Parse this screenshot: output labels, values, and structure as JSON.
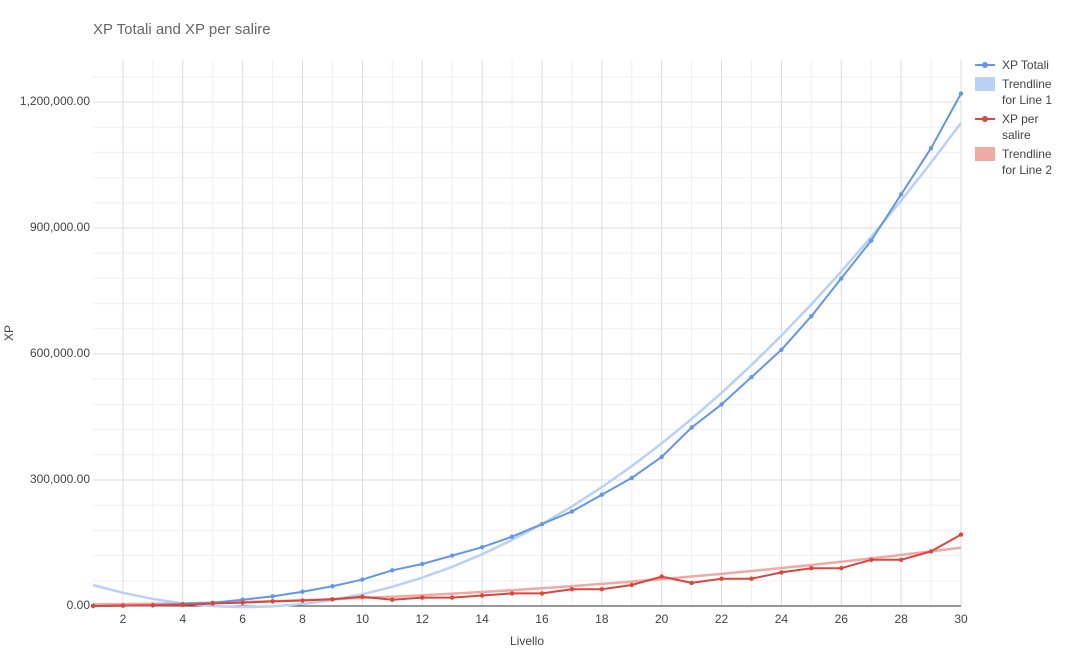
{
  "chart_data": {
    "type": "line",
    "title": "XP Totali and XP per salire",
    "x_label": "Livello",
    "y_label": "XP",
    "x": [
      1,
      2,
      3,
      4,
      5,
      6,
      7,
      8,
      9,
      10,
      11,
      12,
      13,
      14,
      15,
      16,
      17,
      18,
      19,
      20,
      21,
      22,
      23,
      24,
      25,
      26,
      27,
      28,
      29,
      30
    ],
    "series": [
      {
        "name": "XP Totali",
        "color": "#6497e8",
        "trendline": false,
        "values": [
          0,
          1000,
          2500,
          5000,
          8000,
          15000,
          23000,
          34000,
          47000,
          63000,
          85000,
          100000,
          120000,
          140000,
          165000,
          195000,
          225000,
          265000,
          305000,
          355000,
          425000,
          480000,
          545000,
          610000,
          690000,
          780000,
          870000,
          980000,
          1090000,
          1220000
        ]
      },
      {
        "name": "Trendline for Line 1",
        "color": "#b9d1f6",
        "trendline": true,
        "values": [
          50000,
          31403,
          16844,
          6321,
          -160,
          -2605,
          -1012,
          4619,
          14288,
          27995,
          45740,
          67523,
          93344,
          123203,
          157100,
          195035,
          237008,
          283019,
          333068,
          387155,
          445280,
          507443,
          573644,
          643883,
          718160,
          796475,
          878828,
          965219,
          1055648,
          1150115
        ]
      },
      {
        "name": "XP per salire",
        "color": "#d9463b",
        "trendline": false,
        "values": [
          0,
          1000,
          1500,
          2500,
          6000,
          8000,
          11000,
          13000,
          16000,
          22000,
          15000,
          20000,
          20000,
          25000,
          30000,
          30000,
          40000,
          40000,
          50000,
          70000,
          55000,
          65000,
          65000,
          80000,
          90000,
          90000,
          110000,
          110000,
          130000,
          170000
        ]
      },
      {
        "name": "Trendline for Line 2",
        "color": "#efaaa4",
        "trendline": true,
        "values": [
          4150,
          4600,
          5350,
          6400,
          7750,
          9400,
          11350,
          13600,
          16150,
          19000,
          22150,
          25600,
          29350,
          33400,
          37750,
          42400,
          47350,
          52600,
          58150,
          64000,
          70150,
          76600,
          83350,
          90400,
          97750,
          105400,
          113350,
          121600,
          130150,
          139000
        ]
      }
    ],
    "xlim": [
      1,
      30
    ],
    "xticks": [
      2,
      4,
      6,
      8,
      10,
      12,
      14,
      16,
      18,
      20,
      22,
      24,
      26,
      28,
      30
    ],
    "x_minor_ticks": [
      3,
      5,
      7,
      9,
      11,
      13,
      15,
      17,
      19,
      21,
      23,
      25,
      27,
      29
    ],
    "ylim": [
      0,
      1300000
    ],
    "yticks": [
      {
        "value": 0,
        "label": "0.00"
      },
      {
        "value": 300000,
        "label": "300,000.00"
      },
      {
        "value": 600000,
        "label": "600,000.00"
      },
      {
        "value": 900000,
        "label": "900,000.00"
      },
      {
        "value": 1200000,
        "label": "1,200,000.00"
      }
    ],
    "y_minor_ticks": [
      60000,
      120000,
      180000,
      240000,
      360000,
      420000,
      480000,
      540000,
      660000,
      720000,
      780000,
      840000,
      960000,
      1020000,
      1080000,
      1140000,
      1260000
    ],
    "grid": true,
    "legend": "right"
  }
}
